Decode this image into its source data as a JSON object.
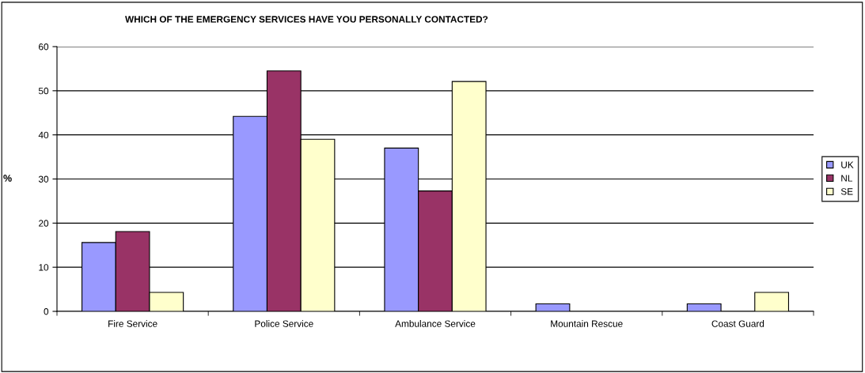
{
  "chart_data": {
    "type": "bar",
    "title": "WHICH OF THE EMERGENCY SERVICES HAVE YOU PERSONALLY CONTACTED?",
    "ylabel": "%",
    "categories": [
      "Fire Service",
      "Police Service",
      "Ambulance Service",
      "Mountain Rescue",
      "Coast Guard"
    ],
    "series": [
      {
        "name": "UK",
        "color": "#9999ff",
        "values": [
          15.6,
          44.2,
          37.0,
          1.7,
          1.7
        ]
      },
      {
        "name": "NL",
        "color": "#993366",
        "values": [
          18.1,
          54.5,
          27.3,
          0,
          0
        ]
      },
      {
        "name": "SE",
        "color": "#ffffcc",
        "values": [
          4.3,
          39.0,
          52.1,
          0,
          4.3
        ]
      }
    ],
    "ylim": [
      0,
      60
    ],
    "yticks": [
      0,
      10,
      20,
      30,
      40,
      50,
      60
    ],
    "grid": "y",
    "legend": "right"
  }
}
